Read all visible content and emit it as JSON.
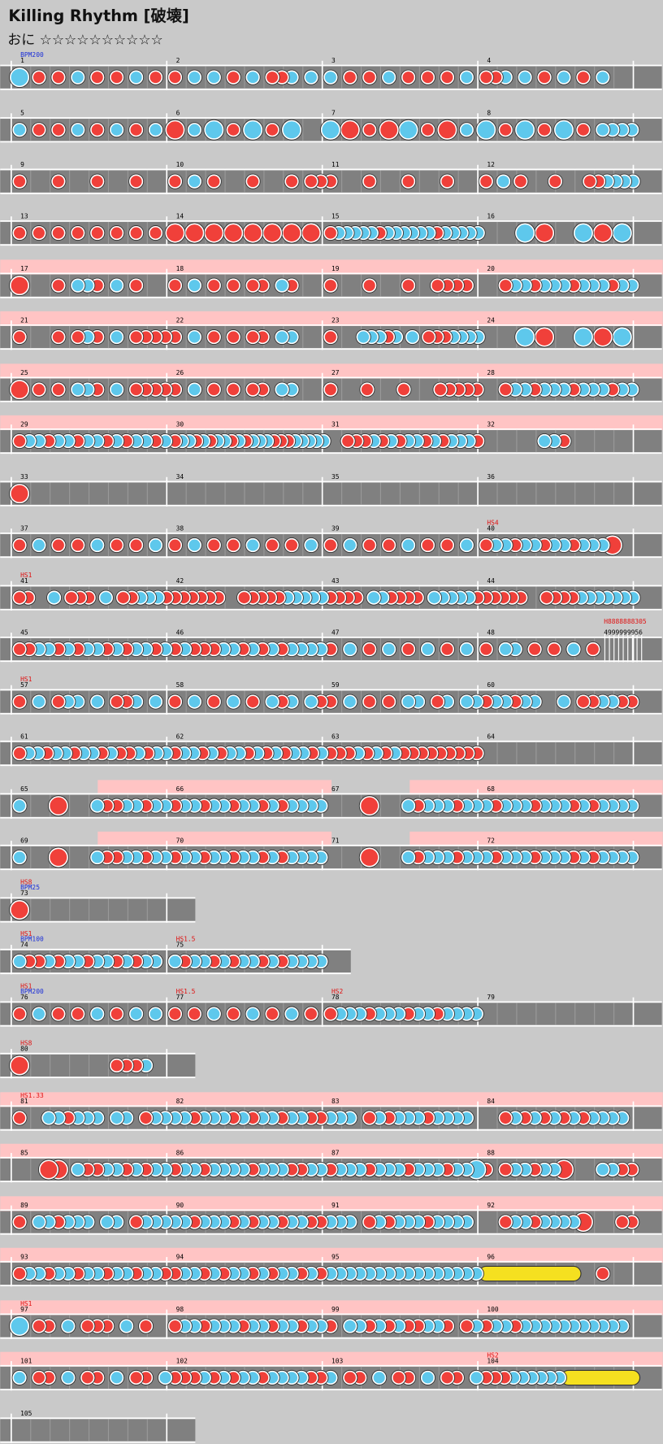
{
  "header": {
    "title": "Killing Rhythm [破壊]",
    "difficulty": "おに",
    "stars": "☆☆☆☆☆☆☆☆☆☆"
  },
  "rows": [
    {
      "measures": [
        {
          "number": "1",
          "bpm": "BPM200"
        },
        {
          "number": "2"
        },
        {
          "number": "3"
        },
        {
          "number": "4"
        }
      ]
    },
    {
      "measures": [
        {
          "number": "5"
        },
        {
          "number": "6"
        },
        {
          "number": "7"
        },
        {
          "number": "8"
        }
      ]
    },
    {
      "measures": [
        {
          "number": "9"
        },
        {
          "number": "10"
        },
        {
          "number": "11"
        },
        {
          "number": "12"
        }
      ]
    },
    {
      "measures": [
        {
          "number": "13"
        },
        {
          "number": "14"
        },
        {
          "number": "15"
        },
        {
          "number": "16"
        }
      ]
    },
    {
      "measures": [
        {
          "number": "17"
        },
        {
          "number": "18"
        },
        {
          "number": "19"
        },
        {
          "number": "20"
        }
      ]
    },
    {
      "measures": [
        {
          "number": "21"
        },
        {
          "number": "22"
        },
        {
          "number": "23"
        },
        {
          "number": "24"
        }
      ]
    },
    {
      "measures": [
        {
          "number": "25"
        },
        {
          "number": "26"
        },
        {
          "number": "27"
        },
        {
          "number": "28"
        }
      ]
    },
    {
      "measures": [
        {
          "number": "29"
        },
        {
          "number": "30"
        },
        {
          "number": "31"
        },
        {
          "number": "32"
        }
      ]
    },
    {
      "measures": [
        {
          "number": "33"
        },
        {
          "number": "34"
        },
        {
          "number": "35"
        },
        {
          "number": "36"
        }
      ]
    },
    {
      "measures": [
        {
          "number": "37"
        },
        {
          "number": "38"
        },
        {
          "number": "39"
        },
        {
          "number": "40",
          "hs": "HS4"
        }
      ]
    },
    {
      "measures": [
        {
          "number": "41",
          "hs": "HS1"
        },
        {
          "number": "42"
        },
        {
          "number": "43"
        },
        {
          "number": "44"
        }
      ]
    },
    {
      "measures": [
        {
          "number": "45"
        },
        {
          "number": "46"
        },
        {
          "number": "47"
        },
        {
          "number": "48"
        }
      ],
      "tail": {
        "hs": "H8888888305",
        "number": "4999999956"
      }
    },
    {
      "measures": [
        {
          "number": "57",
          "hs": "HS1"
        },
        {
          "number": "58"
        },
        {
          "number": "59"
        },
        {
          "number": "60"
        }
      ]
    },
    {
      "measures": [
        {
          "number": "61"
        },
        {
          "number": "62"
        },
        {
          "number": "63"
        },
        {
          "number": "64"
        }
      ]
    },
    {
      "measures": [
        {
          "number": "65"
        },
        {
          "number": "66"
        },
        {
          "number": "67"
        },
        {
          "number": "68"
        }
      ]
    },
    {
      "measures": [
        {
          "number": "69"
        },
        {
          "number": "70"
        },
        {
          "number": "71"
        },
        {
          "number": "72"
        }
      ]
    },
    {
      "measures": [
        {
          "number": "73",
          "hs": "HS8",
          "bpm": "BPM25"
        }
      ]
    },
    {
      "measures": [
        {
          "number": "74",
          "hs": "HS1",
          "bpm": "BPM100"
        },
        {
          "number": "75",
          "hs": "HS1.5"
        }
      ]
    },
    {
      "measures": [
        {
          "number": "76",
          "hs": "HS1",
          "bpm": "BPM200"
        },
        {
          "number": "77",
          "hs": "HS1.5"
        },
        {
          "number": "78",
          "hs": "HS2"
        },
        {
          "number": "79"
        }
      ]
    },
    {
      "measures": [
        {
          "number": "80",
          "hs": "HS8"
        }
      ]
    },
    {
      "measures": [
        {
          "number": "81",
          "hs": "HS1.33"
        },
        {
          "number": "82"
        },
        {
          "number": "83"
        },
        {
          "number": "84"
        }
      ]
    },
    {
      "measures": [
        {
          "number": "85"
        },
        {
          "number": "86"
        },
        {
          "number": "87"
        },
        {
          "number": "88"
        }
      ]
    },
    {
      "measures": [
        {
          "number": "89"
        },
        {
          "number": "90"
        },
        {
          "number": "91"
        },
        {
          "number": "92"
        }
      ]
    },
    {
      "measures": [
        {
          "number": "93"
        },
        {
          "number": "94"
        },
        {
          "number": "95"
        },
        {
          "number": "96"
        }
      ]
    },
    {
      "measures": [
        {
          "number": "97",
          "hs": "HS1"
        },
        {
          "number": "98"
        },
        {
          "number": "99"
        },
        {
          "number": "100"
        }
      ]
    },
    {
      "measures": [
        {
          "number": "101"
        },
        {
          "number": "102"
        },
        {
          "number": "103"
        },
        {
          "number": "104",
          "hs": "HS2"
        }
      ]
    },
    {
      "measures": [
        {
          "number": "105"
        }
      ]
    }
  ]
}
